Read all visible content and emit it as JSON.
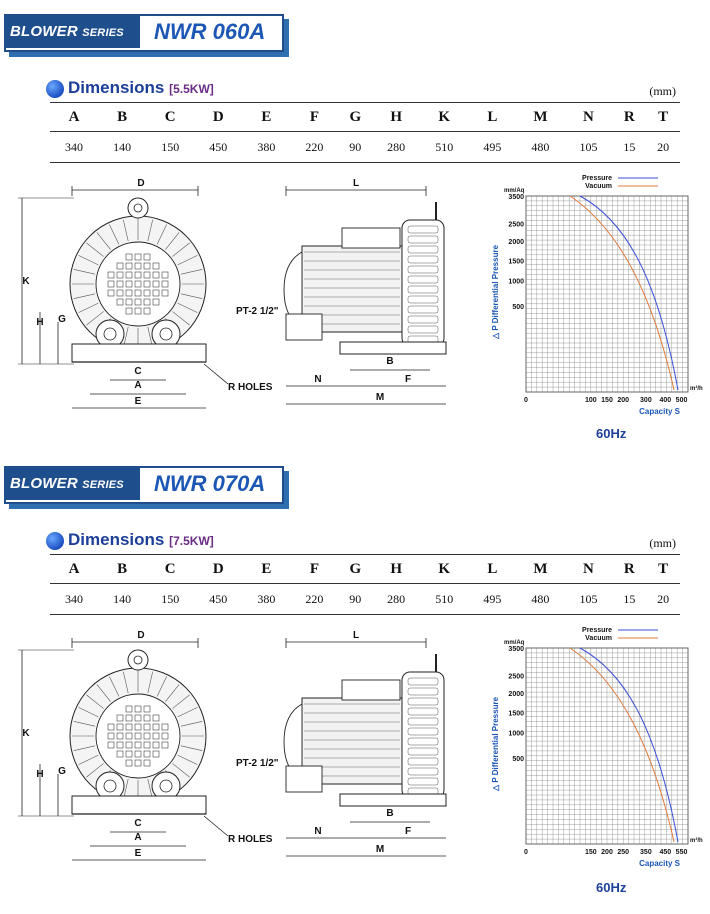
{
  "sections": [
    {
      "series": "BLOWER",
      "series_suffix": "SERIES",
      "model": "NWR 060A",
      "dims_title": "Dimensions",
      "power": "[5.5KW]",
      "unit": "(mm)",
      "headers": [
        "A",
        "B",
        "C",
        "D",
        "E",
        "F",
        "G",
        "H",
        "K",
        "L",
        "M",
        "N",
        "R",
        "T"
      ],
      "values": [
        "340",
        "140",
        "150",
        "450",
        "380",
        "220",
        "90",
        "280",
        "510",
        "495",
        "480",
        "105",
        "15",
        "20"
      ],
      "drawing_labels": {
        "D": "D",
        "K": "K",
        "H": "H",
        "G": "G",
        "C": "C",
        "A": "A",
        "E": "E",
        "r_holes": "R HOLES",
        "L": "L",
        "pt": "PT-2 1/2\"",
        "B": "B",
        "N": "N",
        "F": "F",
        "M": "M"
      },
      "chart": {
        "y_unit": "mm/Aq",
        "y_ticks": [
          "3500",
          "2500",
          "2000",
          "1500",
          "1000",
          "500"
        ],
        "x_unit": "m³/h",
        "x_ticks": [
          "0",
          "100",
          "150",
          "200",
          "300",
          "400",
          "500"
        ],
        "y_label": "△ P Differential Pressure",
        "x_label": "Capacity S",
        "legend": [
          {
            "name": "Pressure",
            "color": "#3a4fd8"
          },
          {
            "name": "Vacuum",
            "color": "#e07a3a"
          }
        ],
        "freq": "60Hz"
      }
    },
    {
      "series": "BLOWER",
      "series_suffix": "SERIES",
      "model": "NWR 070A",
      "dims_title": "Dimensions",
      "power": "[7.5KW]",
      "unit": "(mm)",
      "headers": [
        "A",
        "B",
        "C",
        "D",
        "E",
        "F",
        "G",
        "H",
        "K",
        "L",
        "M",
        "N",
        "R",
        "T"
      ],
      "values": [
        "340",
        "140",
        "150",
        "450",
        "380",
        "220",
        "90",
        "280",
        "510",
        "495",
        "480",
        "105",
        "15",
        "20"
      ],
      "drawing_labels": {
        "D": "D",
        "K": "K",
        "H": "H",
        "G": "G",
        "C": "C",
        "A": "A",
        "E": "E",
        "r_holes": "R HOLES",
        "L": "L",
        "pt": "PT-2 1/2\"",
        "B": "B",
        "N": "N",
        "F": "F",
        "M": "M"
      },
      "chart": {
        "y_unit": "mm/Aq",
        "y_ticks": [
          "3500",
          "2500",
          "2000",
          "1500",
          "1000",
          "500"
        ],
        "x_unit": "m³/h",
        "x_ticks": [
          "0",
          "150",
          "200",
          "250",
          "350",
          "450",
          "550"
        ],
        "y_label": "△ P Differential Pressure",
        "x_label": "Capacity S",
        "legend": [
          {
            "name": "Pressure",
            "color": "#3a4fd8"
          },
          {
            "name": "Vacuum",
            "color": "#e07a3a"
          }
        ],
        "freq": "60Hz"
      }
    }
  ]
}
